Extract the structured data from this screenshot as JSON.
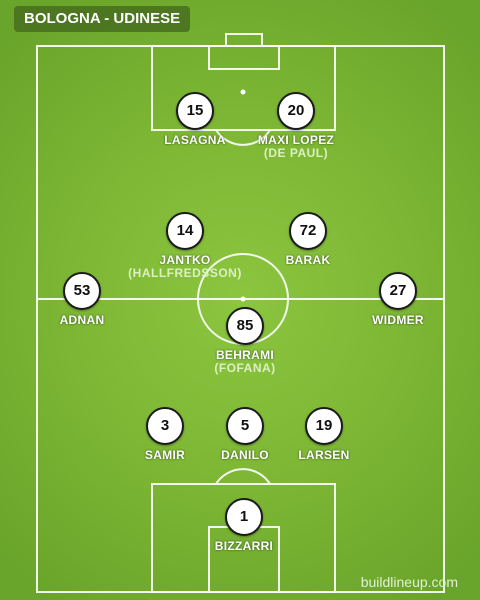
{
  "header": {
    "title": "BOLOGNA - UDINESE"
  },
  "players": {
    "p15": {
      "number": "15",
      "name": "LASAGNA"
    },
    "p20": {
      "number": "20",
      "name": "MAXI LOPEZ",
      "sub": "(DE PAUL)"
    },
    "p14": {
      "number": "14",
      "name": "JANTKO",
      "sub": "(HALLFREDSSON)"
    },
    "p72": {
      "number": "72",
      "name": "BARAK"
    },
    "p53": {
      "number": "53",
      "name": "ADNAN"
    },
    "p27": {
      "number": "27",
      "name": "WIDMER"
    },
    "p85": {
      "number": "85",
      "name": "BEHRAMI",
      "sub": "(FOFANA)"
    },
    "p3": {
      "number": "3",
      "name": "SAMIR"
    },
    "p5": {
      "number": "5",
      "name": "DANILO"
    },
    "p19": {
      "number": "19",
      "name": "LARSEN"
    },
    "p1": {
      "number": "1",
      "name": "BIZZARRI"
    }
  },
  "footer": {
    "watermark": "buildlineup.com"
  },
  "colors": {
    "pitch": "#7bb533",
    "lines": "#ffffff",
    "disc_fill": "#ffffff",
    "disc_border": "#1b1b1b"
  }
}
